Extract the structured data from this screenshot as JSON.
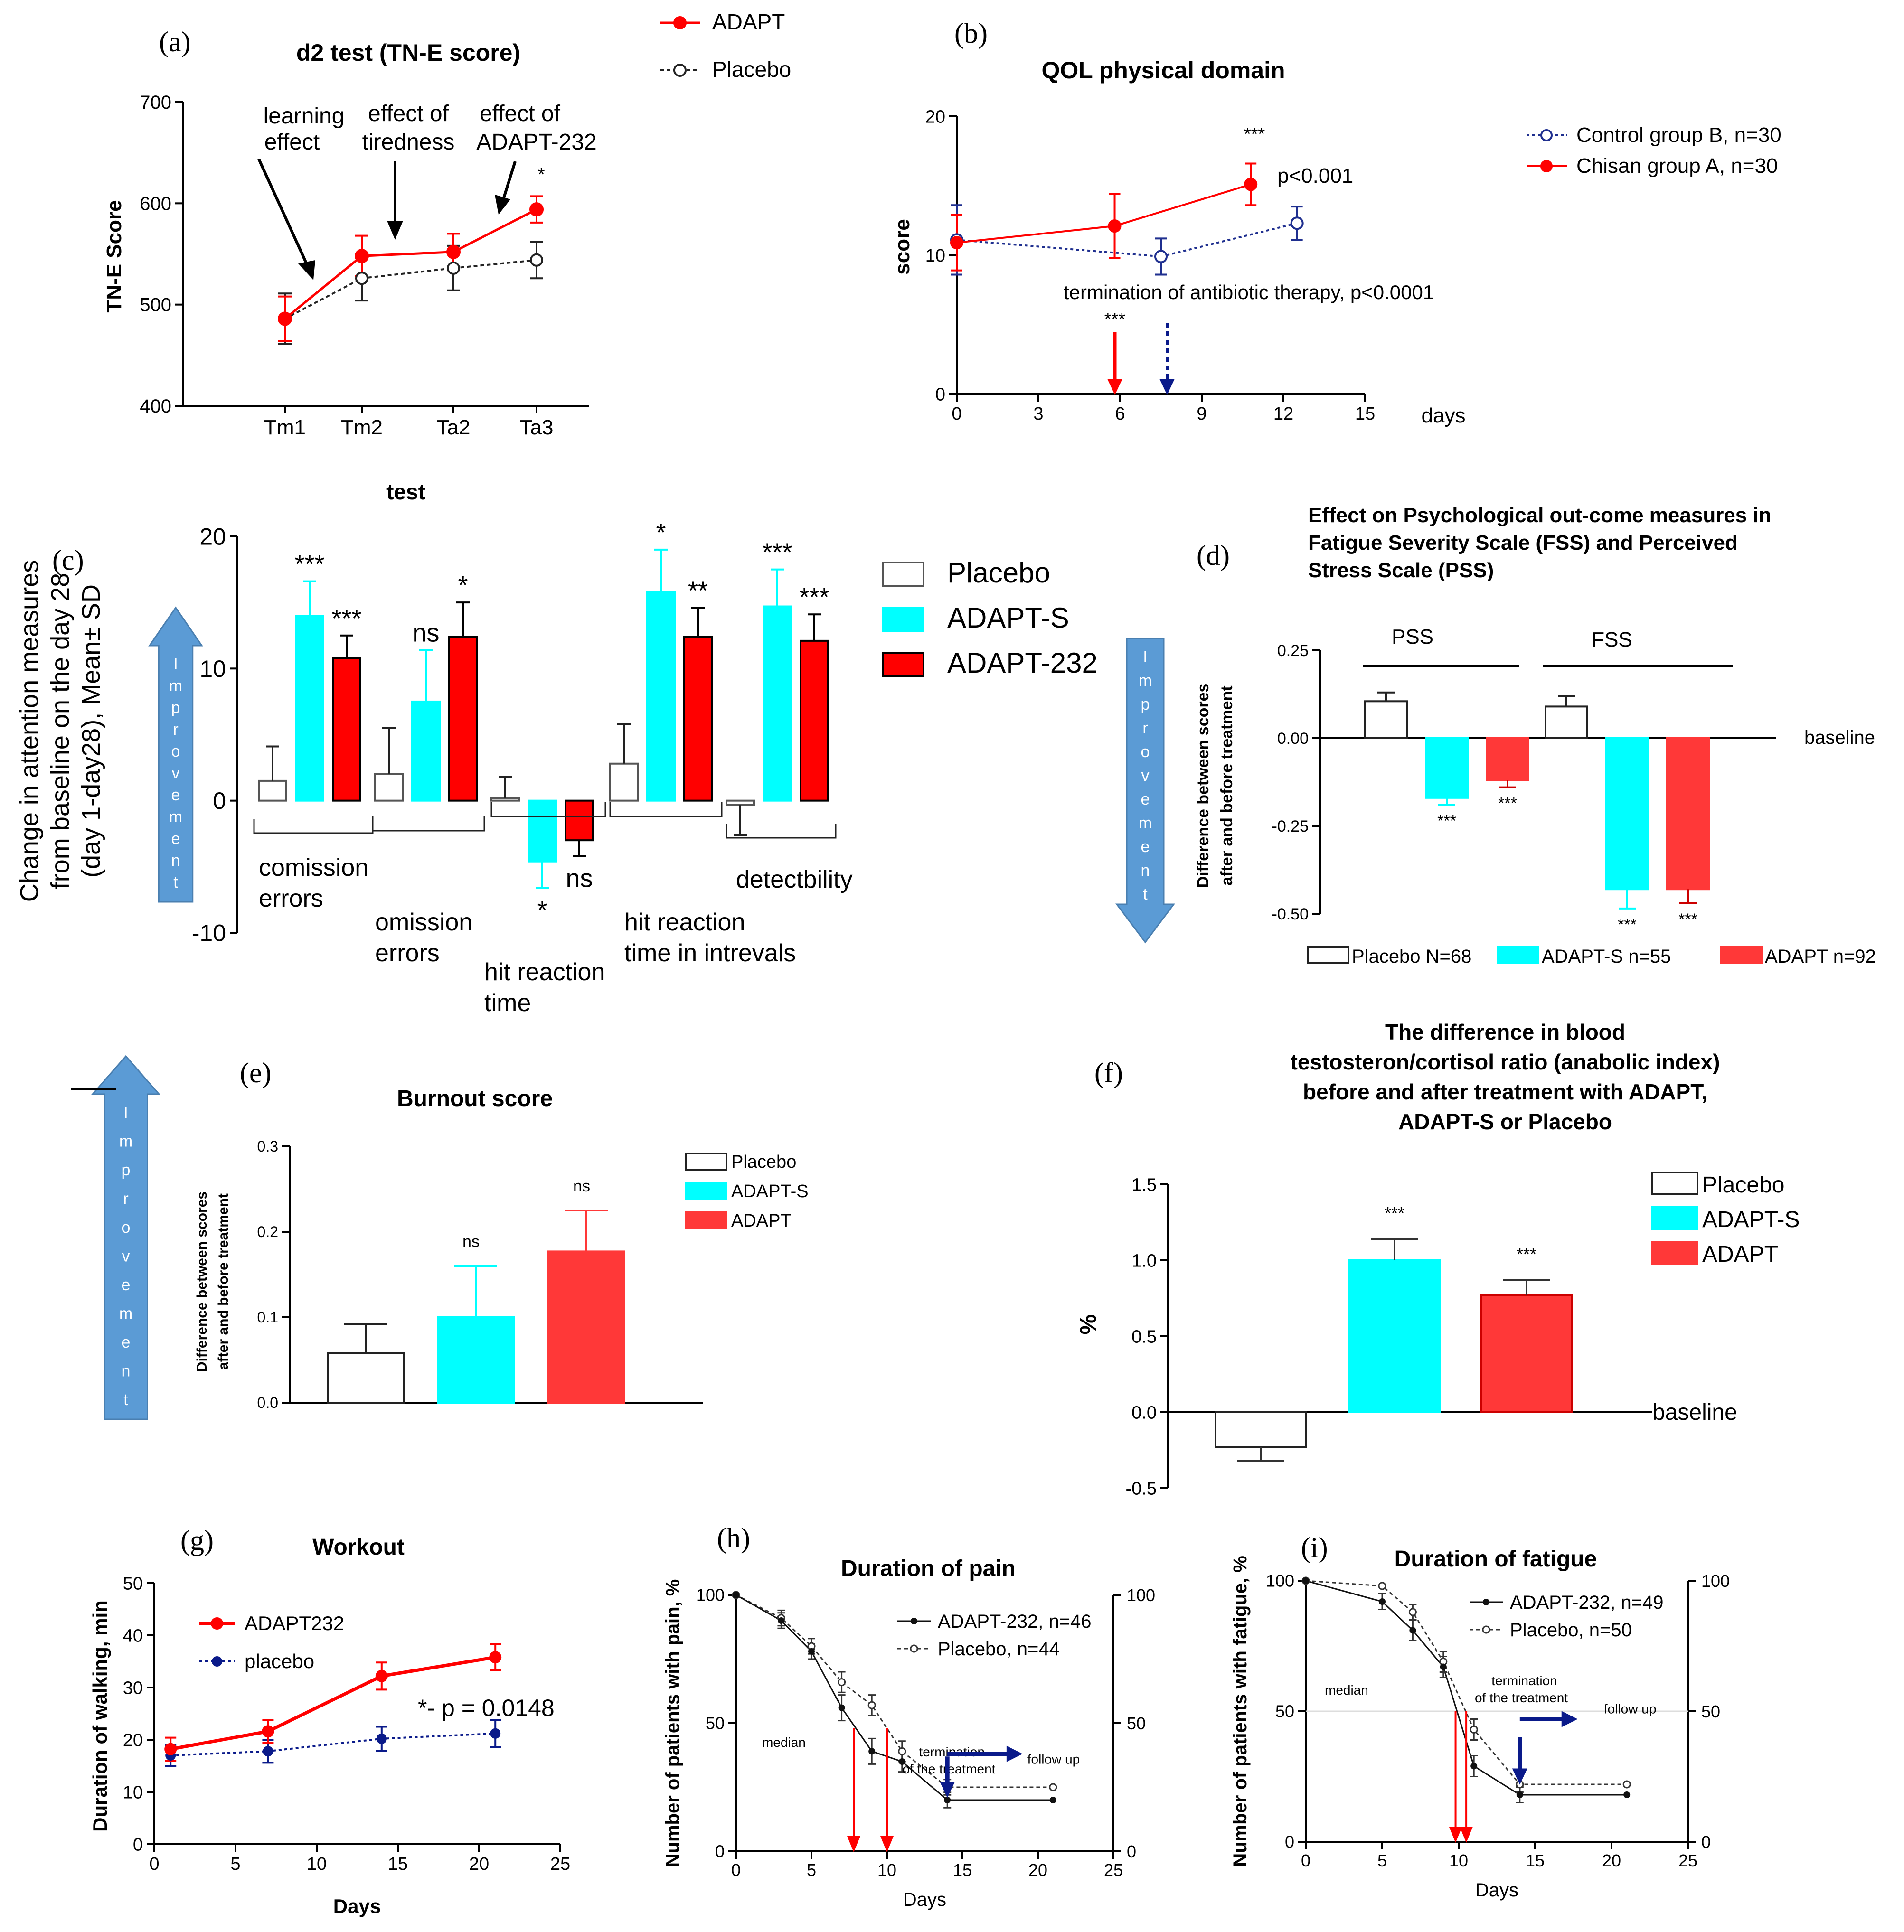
{
  "colors": {
    "adapt": "#ff0000",
    "adapt_bar": "#ff3838",
    "adapt_s": "#00ffff",
    "placebo": "#222222",
    "control_blue": "#1f2f8f",
    "arrow_blue": "#5b9bd5",
    "navy": "#0a1a8a",
    "grey": "#888888"
  },
  "chart_data": [
    {
      "id": "a",
      "panel_label": "(a)",
      "type": "line",
      "title": "d2 test (TN-E score)",
      "xlabel": "test",
      "ylabel": "TN-E Score",
      "categories": [
        "Tm1",
        "Tm2",
        "Ta2",
        "Ta3"
      ],
      "ylim": [
        400,
        700
      ],
      "yticks": [
        400,
        500,
        600,
        700
      ],
      "ytick_labels": [
        "400",
        "500",
        "600",
        "700"
      ],
      "series": [
        {
          "name": "ADAPT",
          "style": "solid",
          "marker": "filled",
          "values": [
            486,
            548,
            552,
            594
          ],
          "errors": [
            22,
            20,
            18,
            13
          ]
        },
        {
          "name": "Placebo",
          "style": "dotted",
          "marker": "open",
          "values": [
            486,
            526,
            536,
            544
          ],
          "errors": [
            25,
            22,
            22,
            18
          ]
        }
      ],
      "legend": [
        "ADAPT",
        "Placebo"
      ],
      "annotations": [
        {
          "text": "learning",
          "text2": "effect"
        },
        {
          "text": "effect of",
          "text2": "tiredness"
        },
        {
          "text": "effect of",
          "text2": "ADAPT-232"
        },
        {
          "text": "*"
        }
      ]
    },
    {
      "id": "b",
      "panel_label": "(b)",
      "type": "line",
      "title": "QOL physical domain",
      "xlabel": "days",
      "ylabel": "score",
      "xlim": [
        0,
        15
      ],
      "ylim": [
        0,
        20
      ],
      "xticks": [
        0,
        3,
        6,
        9,
        12,
        15
      ],
      "xtick_labels": [
        "0",
        "3",
        "6",
        "9",
        "12",
        "15"
      ],
      "yticks": [
        0,
        10,
        20
      ],
      "ytick_labels": [
        "0",
        "10",
        "20"
      ],
      "series": [
        {
          "name": "Control group B, n=30",
          "style": "dotted",
          "marker": "open",
          "x": [
            0,
            7.5,
            12.5
          ],
          "values": [
            11.1,
            9.9,
            12.3
          ],
          "errors": [
            2.5,
            1.3,
            1.2
          ]
        },
        {
          "name": "Chisan group A, n=30",
          "style": "solid",
          "marker": "filled",
          "x": [
            0,
            5.8,
            10.8
          ],
          "values": [
            10.9,
            12.1,
            15.1
          ],
          "errors": [
            2.0,
            2.3,
            1.5
          ]
        }
      ],
      "annotations": [
        {
          "text": "***"
        },
        {
          "text": "p<0.001"
        },
        {
          "text": "termination of antibiotic therapy, p<0.0001"
        },
        {
          "text": "***"
        }
      ]
    },
    {
      "id": "c",
      "panel_label": "(c)",
      "type": "bar",
      "ylabel": "Change in attention measures",
      "ylabel2": "from baseline on the day 28",
      "ylabel3": "(day 1-day28), Mean± SD",
      "ylim": [
        -10,
        20
      ],
      "yticks": [
        -10,
        0,
        10,
        20
      ],
      "ytick_labels": [
        "-10",
        "0",
        "10",
        "20"
      ],
      "categories": [
        "comission errors",
        "omission errors",
        "hit reaction time",
        "hit reaction time in intrevals",
        "detectbility"
      ],
      "category_lines": [
        [
          "comission",
          "errors"
        ],
        [
          "omission",
          "errors"
        ],
        [
          "hit reaction",
          "time"
        ],
        [
          "hit reaction",
          "time in intrevals"
        ],
        [
          "detectbility",
          ""
        ]
      ],
      "series": [
        {
          "name": "Placebo",
          "values": [
            1.5,
            2.0,
            0.2,
            2.8,
            -0.3
          ],
          "errors": [
            2.6,
            3.5,
            1.6,
            3.0,
            2.3
          ],
          "sig": [
            "",
            "",
            "",
            "",
            ""
          ]
        },
        {
          "name": "ADAPT-S",
          "values": [
            14.0,
            7.5,
            -4.6,
            15.8,
            14.7
          ],
          "errors": [
            2.6,
            3.9,
            2.0,
            3.2,
            2.8
          ],
          "sig": [
            "***",
            "ns",
            "*",
            "*",
            "***"
          ]
        },
        {
          "name": "ADAPT-232",
          "values": [
            10.8,
            12.4,
            -3.0,
            12.4,
            12.1
          ],
          "errors": [
            1.7,
            2.6,
            1.2,
            2.2,
            2.0
          ],
          "sig": [
            "***",
            "*",
            "ns",
            "**",
            "***"
          ]
        }
      ],
      "legend": [
        "Placebo",
        "ADAPT-S",
        "ADAPT-232"
      ],
      "arrow_text": "Improvement"
    },
    {
      "id": "d",
      "panel_label": "(d)",
      "type": "bar",
      "title": "Effect on Psychological out-come measures in",
      "title2": "Fatigue Severity Scale (FSS) and Perceived",
      "title3": "Stress Scale (PSS)",
      "ylabel": "Difference between scores",
      "ylabel2": "after and before treatment",
      "ylim": [
        -0.5,
        0.25
      ],
      "yticks": [
        -0.5,
        -0.25,
        0,
        0.25
      ],
      "ytick_labels": [
        "-0.50",
        "-0.25",
        "0.00",
        "0.25"
      ],
      "categories": [
        "PSS",
        "FSS"
      ],
      "series": [
        {
          "name": "Placebo N=68",
          "values": [
            0.105,
            0.09
          ],
          "errors": [
            0.025,
            0.03
          ],
          "sig": [
            "",
            ""
          ]
        },
        {
          "name": "ADAPT-S n=55",
          "values": [
            -0.17,
            -0.43
          ],
          "errors": [
            0.02,
            0.055
          ],
          "sig": [
            "***",
            "***"
          ]
        },
        {
          "name": "ADAPT n=92",
          "values": [
            -0.12,
            -0.43
          ],
          "errors": [
            0.02,
            0.04
          ],
          "sig": [
            "***",
            "***"
          ]
        }
      ],
      "baseline_label": "baseline",
      "arrow_text": "Improvement"
    },
    {
      "id": "e",
      "panel_label": "(e)",
      "type": "bar",
      "title": "Burnout score",
      "ylabel": "Difference between scores",
      "ylabel2": "after and before treatment",
      "ylim": [
        0,
        0.3
      ],
      "yticks": [
        0,
        0.1,
        0.2,
        0.3
      ],
      "ytick_labels": [
        "0.0",
        "0.1",
        "0.2",
        "0.3"
      ],
      "categories": [
        "Placebo",
        "ADAPT-S",
        "ADAPT"
      ],
      "values": [
        0.058,
        0.1,
        0.177
      ],
      "errors": [
        0.034,
        0.06,
        0.048
      ],
      "sig": [
        "",
        "ns",
        "ns"
      ],
      "legend": [
        "Placebo",
        "ADAPT-S",
        "ADAPT"
      ],
      "arrow_text": "Improvement"
    },
    {
      "id": "f",
      "panel_label": "(f)",
      "type": "bar",
      "title": "The difference in blood",
      "title2": "testosteron/cortisol ratio (anabolic index)",
      "title3": "before and after treatment with ADAPT,",
      "title4": "ADAPT-S or Placebo",
      "ylabel": "%",
      "ylim": [
        -0.5,
        1.5
      ],
      "yticks": [
        -0.5,
        0,
        0.5,
        1.0,
        1.5
      ],
      "ytick_labels": [
        "-0.5",
        "0.0",
        "0.5",
        "1.0",
        "1.5"
      ],
      "categories": [
        "Placebo",
        "ADAPT-S",
        "ADAPT"
      ],
      "values": [
        -0.23,
        1.0,
        0.77
      ],
      "errors": [
        0.09,
        0.14,
        0.1
      ],
      "sig": [
        "",
        "***",
        "***"
      ],
      "legend": [
        "Placebo",
        "ADAPT-S",
        "ADAPT"
      ],
      "baseline_label": "baseline"
    },
    {
      "id": "g",
      "panel_label": "(g)",
      "type": "line",
      "title": "Workout",
      "xlabel": "Days",
      "ylabel": "Duration of walking, min",
      "xlim": [
        0,
        25
      ],
      "ylim": [
        0,
        50
      ],
      "xticks": [
        0,
        5,
        10,
        15,
        20,
        25
      ],
      "xtick_labels": [
        "0",
        "5",
        "10",
        "15",
        "20",
        "25"
      ],
      "yticks": [
        0,
        10,
        20,
        30,
        40,
        50
      ],
      "ytick_labels": [
        "0",
        "10",
        "20",
        "30",
        "40",
        "50"
      ],
      "series": [
        {
          "name": "ADAPT232",
          "style": "solid",
          "x": [
            1,
            7,
            14,
            21
          ],
          "values": [
            18.2,
            21.6,
            32.2,
            35.8
          ],
          "errors": [
            2.2,
            2.2,
            2.6,
            2.5
          ]
        },
        {
          "name": "placebo",
          "style": "dotted",
          "x": [
            1,
            7,
            14,
            21
          ],
          "values": [
            17.0,
            17.8,
            20.2,
            21.2
          ],
          "errors": [
            2.0,
            2.2,
            2.3,
            2.6
          ]
        }
      ],
      "pvalue_text": "*- p = 0.0148"
    },
    {
      "id": "h",
      "panel_label": "(h)",
      "type": "line",
      "title": "Duration of pain",
      "xlabel": "Days",
      "ylabel": "Number of patients with pain, %",
      "xlim": [
        0,
        25
      ],
      "ylim": [
        0,
        100
      ],
      "xticks": [
        0,
        5,
        10,
        15,
        20,
        25
      ],
      "xtick_labels": [
        "0",
        "5",
        "10",
        "15",
        "20",
        "25"
      ],
      "yticks": [
        0,
        50,
        100
      ],
      "ytick_labels": [
        "0",
        "50",
        "100"
      ],
      "series": [
        {
          "name": "ADAPT-232, n=46",
          "style": "solid",
          "x": [
            0,
            3,
            5,
            7,
            9,
            11,
            14,
            21
          ],
          "values": [
            100,
            90,
            78,
            56,
            39,
            35,
            20,
            20
          ],
          "errors": [
            0,
            3,
            3,
            5,
            5,
            4,
            3,
            0
          ]
        },
        {
          "name": "Placebo, n=44",
          "style": "dotted",
          "x": [
            0,
            3,
            5,
            7,
            9,
            11,
            14,
            21
          ],
          "values": [
            100,
            91,
            80,
            66,
            57,
            39,
            25,
            25
          ],
          "errors": [
            0,
            3,
            3,
            4,
            4,
            4,
            3,
            0
          ]
        }
      ],
      "median_label": "median",
      "termination_label": "termination",
      "termination_label2": "of the treatment",
      "followup_label": "follow up",
      "median_days": [
        7.8,
        10
      ]
    },
    {
      "id": "i",
      "panel_label": "(i)",
      "type": "line",
      "title": "Duration of fatigue",
      "xlabel": "Days",
      "ylabel": "Number of patients with fatigue, %",
      "xlim": [
        0,
        25
      ],
      "ylim": [
        0,
        100
      ],
      "xticks": [
        0,
        5,
        10,
        15,
        20,
        25
      ],
      "xtick_labels": [
        "0",
        "5",
        "10",
        "15",
        "20",
        "25"
      ],
      "yticks": [
        0,
        50,
        100
      ],
      "ytick_labels": [
        "0",
        "50",
        "100"
      ],
      "series": [
        {
          "name": "ADAPT-232, n=49",
          "style": "solid",
          "x": [
            0,
            5,
            7,
            9,
            11,
            14,
            21
          ],
          "values": [
            100,
            92,
            81,
            67,
            29,
            18,
            18
          ],
          "errors": [
            0,
            3,
            4,
            4,
            4,
            3,
            0
          ]
        },
        {
          "name": "Placebo, n=50",
          "style": "dotted",
          "x": [
            0,
            5,
            7,
            9,
            11,
            14,
            21
          ],
          "values": [
            100,
            98,
            88,
            69,
            43,
            22,
            22
          ],
          "errors": [
            0,
            0,
            3,
            4,
            4,
            3,
            0
          ]
        }
      ],
      "median_label": "median",
      "termination_label": "termination",
      "termination_label2": "of the treatment",
      "followup_label": "follow up",
      "median_days": [
        9.8,
        10.5
      ]
    }
  ]
}
